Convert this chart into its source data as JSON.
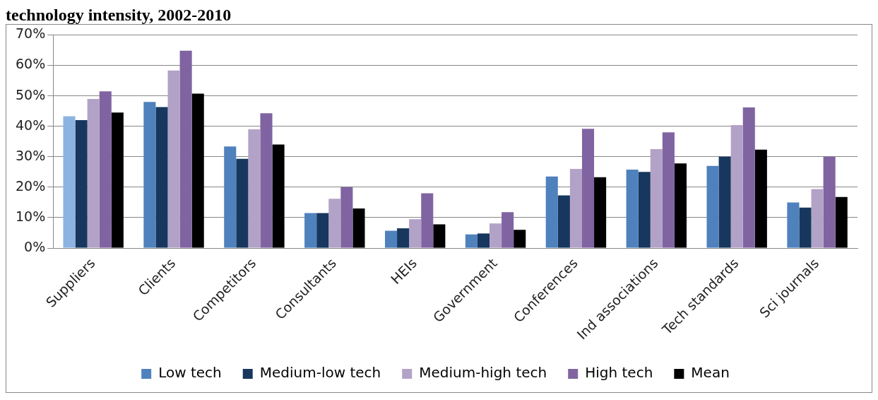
{
  "chart_data": {
    "type": "bar",
    "title": "technology intensity, 2002-2010",
    "categories": [
      "Suppliers",
      "Clients",
      "Competitors",
      "Consultants",
      "HEIs",
      "Government",
      "Conferences",
      "Ind associations",
      "Tech standards",
      "Sci journals"
    ],
    "series": [
      {
        "name": "Low tech",
        "color": "#4f81bd",
        "colors": [
          "#8db3e2",
          "#4f81bd",
          "#4f81bd",
          "#4f81bd",
          "#4f81bd",
          "#4f81bd",
          "#4f81bd",
          "#4f81bd",
          "#4f81bd",
          "#4f81bd"
        ],
        "values": [
          43.3,
          48,
          33.4,
          11.5,
          5.7,
          4.5,
          23.5,
          25.8,
          27,
          15
        ]
      },
      {
        "name": "Medium-low tech",
        "color": "#17375e",
        "values": [
          42,
          46.3,
          29.3,
          11.5,
          6.5,
          4.8,
          17.3,
          25,
          30,
          13.3
        ]
      },
      {
        "name": "Medium-high tech",
        "color": "#b3a2c7",
        "values": [
          49,
          58.3,
          39,
          16.2,
          9.5,
          8.1,
          26,
          32.5,
          40.4,
          19.4
        ]
      },
      {
        "name": "High tech",
        "color": "#8064a2",
        "values": [
          51.5,
          64.8,
          44.3,
          20,
          18,
          11.8,
          39.2,
          38,
          46.2,
          30
        ]
      },
      {
        "name": "Mean",
        "color": "#000000",
        "values": [
          44.5,
          50.7,
          34,
          13,
          7.8,
          6,
          23.3,
          27.8,
          32.3,
          16.8
        ]
      }
    ],
    "ylim": [
      0,
      70
    ],
    "yticks": [
      {
        "value": 0,
        "label": "0%"
      },
      {
        "value": 10,
        "label": "10%"
      },
      {
        "value": 20,
        "label": "20%"
      },
      {
        "value": 30,
        "label": "30%"
      },
      {
        "value": 40,
        "label": "40%"
      },
      {
        "value": 50,
        "label": "50%"
      },
      {
        "value": 60,
        "label": "60%"
      },
      {
        "value": 70,
        "label": "70%"
      }
    ],
    "grid": "y",
    "legend": "bottom"
  }
}
